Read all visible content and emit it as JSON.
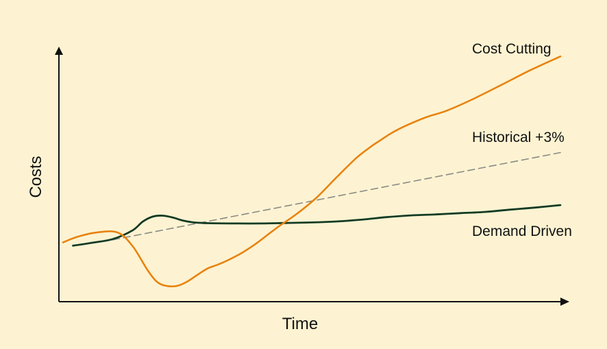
{
  "chart_data": {
    "type": "line",
    "xlabel": "Time",
    "ylabel": "Costs",
    "xlim": [
      0,
      100
    ],
    "ylim": [
      0,
      100
    ],
    "grid": false,
    "series": [
      {
        "name": "Cost Cutting",
        "color": "#e8820e",
        "style": "solid",
        "x": [
          0,
          3,
          7,
          11,
          14,
          17,
          19,
          21,
          23,
          25,
          27,
          29,
          31,
          33,
          36,
          39,
          43,
          47,
          51,
          55,
          59,
          62,
          64,
          66,
          69,
          73,
          77,
          82,
          88,
          94,
          100
        ],
        "y": [
          23.5,
          25.8,
          27.5,
          27.4,
          22.0,
          12.5,
          7.7,
          6.2,
          6.3,
          8.0,
          10.6,
          13.1,
          14.6,
          16.3,
          19.4,
          23.3,
          29.3,
          34.8,
          41.3,
          49.3,
          57.0,
          61.6,
          64.2,
          66.8,
          69.8,
          73.1,
          75.6,
          79.9,
          85.8,
          91.8,
          97.2
        ]
      },
      {
        "name": "Historical +3%",
        "color": "#8a8a85",
        "style": "dashed",
        "x": [
          10,
          100
        ],
        "y": [
          24.5,
          59.1
        ]
      },
      {
        "name": "Demand Driven",
        "color": "#123b24",
        "style": "solid",
        "x": [
          2,
          6,
          10,
          14,
          16,
          18,
          20,
          22,
          24,
          26,
          28,
          30,
          35,
          40,
          45,
          50,
          55,
          60,
          65,
          70,
          75,
          80,
          85,
          90,
          95,
          100
        ],
        "y": [
          22.2,
          23.4,
          24.8,
          28.3,
          31.7,
          33.7,
          34.1,
          33.4,
          32.2,
          31.5,
          31.2,
          31.1,
          31.0,
          31.0,
          31.2,
          31.4,
          31.8,
          32.5,
          33.5,
          34.2,
          34.6,
          35.1,
          35.6,
          36.5,
          37.3,
          38.3
        ]
      }
    ],
    "labels": [
      {
        "text": "Cost Cutting",
        "series": 0
      },
      {
        "text": "Historical +3%",
        "series": 1
      },
      {
        "text": "Demand Driven",
        "series": 2
      }
    ]
  }
}
